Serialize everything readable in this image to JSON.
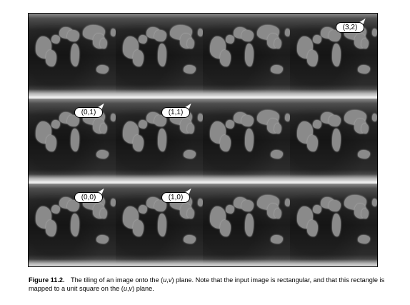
{
  "figure": {
    "rows": 3,
    "columns": 4,
    "tile_labels": [
      {
        "text": "(3,2)",
        "row": 0,
        "col": 3
      },
      {
        "text": "(0,1)",
        "row": 1,
        "col": 0
      },
      {
        "text": "(1,1)",
        "row": 1,
        "col": 1
      },
      {
        "text": "(0,0)",
        "row": 2,
        "col": 0
      },
      {
        "text": "(1,0)",
        "row": 2,
        "col": 1
      }
    ]
  },
  "caption": {
    "label": "Figure 11.2.",
    "text_1": "The tiling of an image onto the (",
    "u": "u",
    "comma": ",",
    "v": "v",
    "text_2": ") plane. Note that the input image is rectangular, and that this rectangle is mapped to a unit square on the (",
    "text_3": ") plane."
  }
}
